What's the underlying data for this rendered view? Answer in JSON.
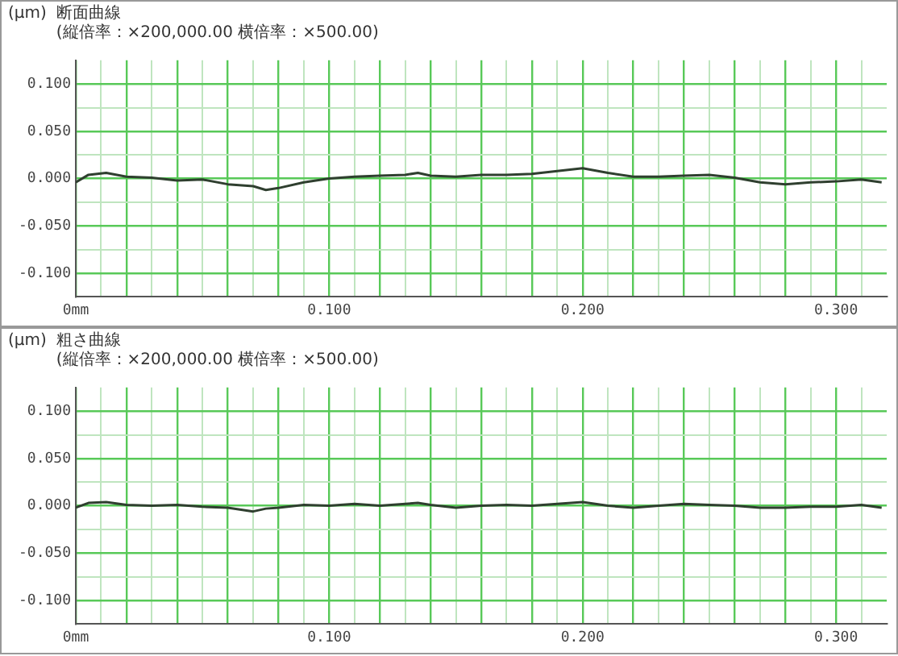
{
  "chart_data": [
    {
      "type": "line",
      "title": "断面曲線",
      "subtitle": "(縦倍率：×200,000.00 横倍率：×500.00)",
      "ylabel": "(μm)",
      "x": [
        0,
        0.005,
        0.012,
        0.02,
        0.03,
        0.04,
        0.05,
        0.06,
        0.07,
        0.075,
        0.08,
        0.09,
        0.1,
        0.11,
        0.12,
        0.13,
        0.135,
        0.14,
        0.15,
        0.16,
        0.17,
        0.18,
        0.19,
        0.2,
        0.21,
        0.22,
        0.23,
        0.24,
        0.25,
        0.26,
        0.27,
        0.28,
        0.29,
        0.3,
        0.31,
        0.318
      ],
      "series": [
        {
          "color": "#2f3f2f",
          "values": [
            -0.004,
            0.004,
            0.006,
            0.002,
            0.001,
            -0.002,
            -0.001,
            -0.006,
            -0.008,
            -0.012,
            -0.01,
            -0.004,
            0,
            0.002,
            0.003,
            0.004,
            0.006,
            0.003,
            0.002,
            0.004,
            0.004,
            0.005,
            0.008,
            0.011,
            0.006,
            0.002,
            0.002,
            0.003,
            0.004,
            0.001,
            -0.004,
            -0.006,
            -0.004,
            -0.003,
            -0.001,
            -0.004
          ]
        }
      ],
      "xlim": [
        0,
        0.32
      ],
      "ylim": [
        -0.125,
        0.125
      ],
      "xticks": [
        {
          "value": 0,
          "label": "0mm"
        },
        {
          "value": 0.01,
          "label": null
        },
        {
          "value": 0.02,
          "label": null
        },
        {
          "value": 0.03,
          "label": null
        },
        {
          "value": 0.04,
          "label": null
        },
        {
          "value": 0.05,
          "label": null
        },
        {
          "value": 0.06,
          "label": null
        },
        {
          "value": 0.07,
          "label": null
        },
        {
          "value": 0.08,
          "label": null
        },
        {
          "value": 0.09,
          "label": null
        },
        {
          "value": 0.1,
          "label": "0.100"
        },
        {
          "value": 0.11,
          "label": null
        },
        {
          "value": 0.12,
          "label": null
        },
        {
          "value": 0.13,
          "label": null
        },
        {
          "value": 0.14,
          "label": null
        },
        {
          "value": 0.15,
          "label": null
        },
        {
          "value": 0.16,
          "label": null
        },
        {
          "value": 0.17,
          "label": null
        },
        {
          "value": 0.18,
          "label": null
        },
        {
          "value": 0.19,
          "label": null
        },
        {
          "value": 0.2,
          "label": "0.200"
        },
        {
          "value": 0.21,
          "label": null
        },
        {
          "value": 0.22,
          "label": null
        },
        {
          "value": 0.23,
          "label": null
        },
        {
          "value": 0.24,
          "label": null
        },
        {
          "value": 0.25,
          "label": null
        },
        {
          "value": 0.26,
          "label": null
        },
        {
          "value": 0.27,
          "label": null
        },
        {
          "value": 0.28,
          "label": null
        },
        {
          "value": 0.29,
          "label": null
        },
        {
          "value": 0.3,
          "label": "0.300"
        },
        {
          "value": 0.31,
          "label": null
        }
      ],
      "yticks": [
        {
          "value": -0.1,
          "label": "-0.100"
        },
        {
          "value": -0.075,
          "label": null
        },
        {
          "value": -0.05,
          "label": "-0.050"
        },
        {
          "value": -0.025,
          "label": null
        },
        {
          "value": 0,
          "label": "0.000"
        },
        {
          "value": 0.025,
          "label": null
        },
        {
          "value": 0.05,
          "label": "0.050"
        },
        {
          "value": 0.075,
          "label": null
        },
        {
          "value": 0.1,
          "label": "0.100"
        }
      ],
      "grid": true,
      "marker": "none",
      "line_style": "solid"
    },
    {
      "type": "line",
      "title": "粗さ曲線",
      "subtitle": "(縦倍率：×200,000.00 横倍率：×500.00)",
      "ylabel": "(μm)",
      "x": [
        0,
        0.005,
        0.012,
        0.02,
        0.03,
        0.04,
        0.05,
        0.06,
        0.07,
        0.075,
        0.08,
        0.09,
        0.1,
        0.11,
        0.12,
        0.13,
        0.135,
        0.14,
        0.15,
        0.16,
        0.17,
        0.18,
        0.19,
        0.2,
        0.21,
        0.22,
        0.23,
        0.24,
        0.25,
        0.26,
        0.27,
        0.28,
        0.29,
        0.3,
        0.31,
        0.318
      ],
      "series": [
        {
          "color": "#2f3f2f",
          "values": [
            -0.002,
            0.003,
            0.004,
            0.001,
            0,
            0.001,
            -0.001,
            -0.002,
            -0.006,
            -0.003,
            -0.002,
            0.001,
            0,
            0.002,
            0,
            0.002,
            0.003,
            0.001,
            -0.002,
            0,
            0.001,
            0,
            0.002,
            0.004,
            0,
            -0.002,
            0,
            0.002,
            0.001,
            0,
            -0.002,
            -0.002,
            -0.001,
            -0.001,
            0.001,
            -0.002
          ]
        }
      ],
      "xlim": [
        0,
        0.32
      ],
      "ylim": [
        -0.125,
        0.125
      ],
      "xticks": [
        {
          "value": 0,
          "label": "0mm"
        },
        {
          "value": 0.01,
          "label": null
        },
        {
          "value": 0.02,
          "label": null
        },
        {
          "value": 0.03,
          "label": null
        },
        {
          "value": 0.04,
          "label": null
        },
        {
          "value": 0.05,
          "label": null
        },
        {
          "value": 0.06,
          "label": null
        },
        {
          "value": 0.07,
          "label": null
        },
        {
          "value": 0.08,
          "label": null
        },
        {
          "value": 0.09,
          "label": null
        },
        {
          "value": 0.1,
          "label": "0.100"
        },
        {
          "value": 0.11,
          "label": null
        },
        {
          "value": 0.12,
          "label": null
        },
        {
          "value": 0.13,
          "label": null
        },
        {
          "value": 0.14,
          "label": null
        },
        {
          "value": 0.15,
          "label": null
        },
        {
          "value": 0.16,
          "label": null
        },
        {
          "value": 0.17,
          "label": null
        },
        {
          "value": 0.18,
          "label": null
        },
        {
          "value": 0.19,
          "label": null
        },
        {
          "value": 0.2,
          "label": "0.200"
        },
        {
          "value": 0.21,
          "label": null
        },
        {
          "value": 0.22,
          "label": null
        },
        {
          "value": 0.23,
          "label": null
        },
        {
          "value": 0.24,
          "label": null
        },
        {
          "value": 0.25,
          "label": null
        },
        {
          "value": 0.26,
          "label": null
        },
        {
          "value": 0.27,
          "label": null
        },
        {
          "value": 0.28,
          "label": null
        },
        {
          "value": 0.29,
          "label": null
        },
        {
          "value": 0.3,
          "label": "0.300"
        },
        {
          "value": 0.31,
          "label": null
        }
      ],
      "yticks": [
        {
          "value": -0.1,
          "label": "-0.100"
        },
        {
          "value": -0.075,
          "label": null
        },
        {
          "value": -0.05,
          "label": "-0.050"
        },
        {
          "value": -0.025,
          "label": null
        },
        {
          "value": 0,
          "label": "0.000"
        },
        {
          "value": 0.025,
          "label": null
        },
        {
          "value": 0.05,
          "label": "0.050"
        },
        {
          "value": 0.075,
          "label": null
        },
        {
          "value": 0.1,
          "label": "0.100"
        }
      ],
      "grid": true,
      "marker": "none",
      "line_style": "solid"
    }
  ]
}
